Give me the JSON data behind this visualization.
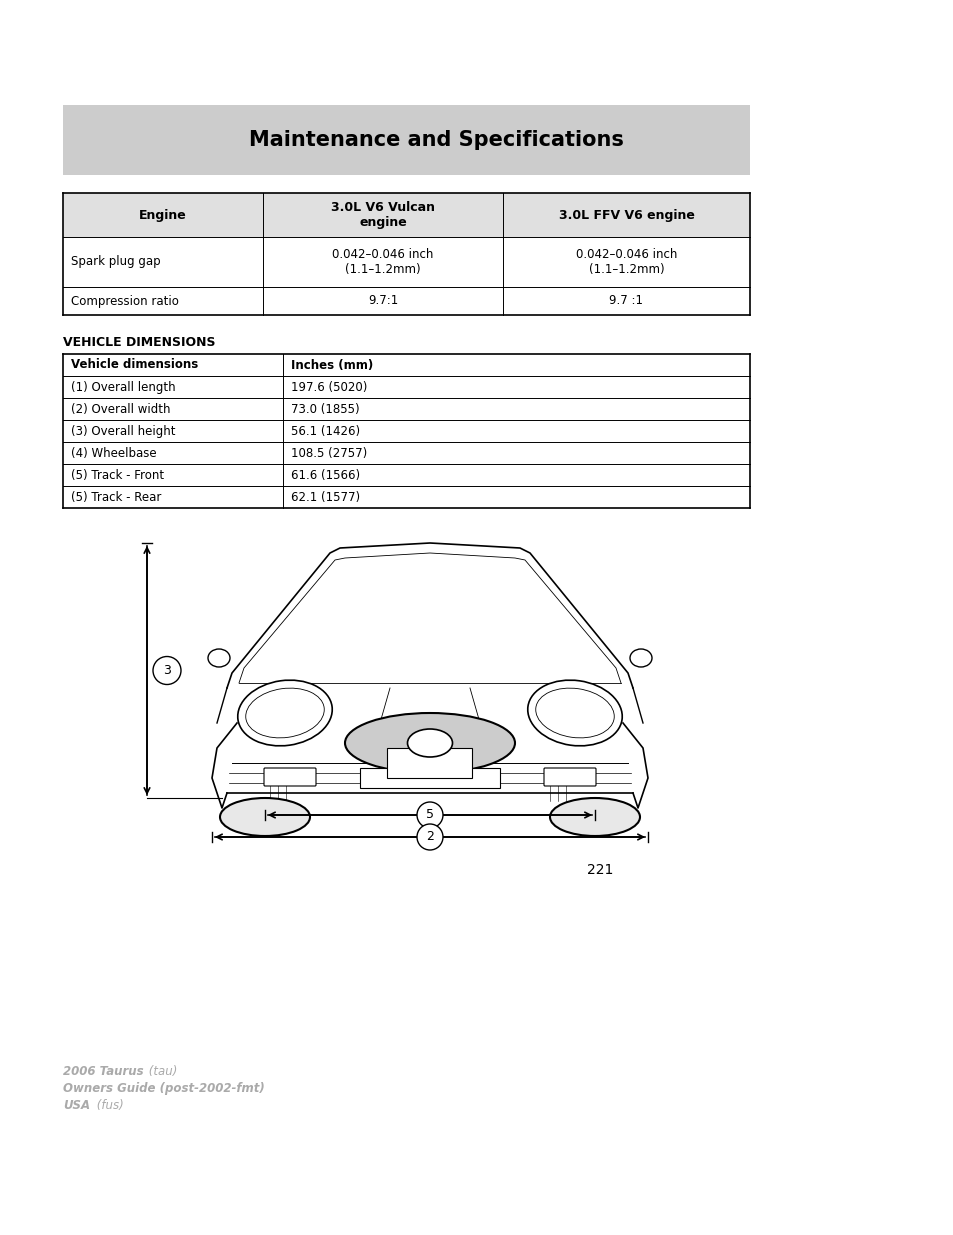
{
  "page_bg": "#ffffff",
  "header_bg": "#cccccc",
  "header_text": "Maintenance and Specifications",
  "header_text_color": "#000000",
  "table1_headers": [
    "Engine",
    "3.0L V6 Vulcan\nengine",
    "3.0L FFV V6 engine"
  ],
  "table1_rows": [
    [
      "Spark plug gap",
      "0.042–0.046 inch\n(1.1–1.2mm)",
      "0.042–0.046 inch\n(1.1–1.2mm)"
    ],
    [
      "Compression ratio",
      "9.7:1",
      "9.7 :1"
    ]
  ],
  "vehicle_dim_title": "VEHICLE DIMENSIONS",
  "table2_headers": [
    "Vehicle dimensions",
    "Inches (mm)"
  ],
  "table2_rows": [
    [
      "(1) Overall length",
      "197.6 (5020)"
    ],
    [
      "(2) Overall width",
      "73.0 (1855)"
    ],
    [
      "(3) Overall height",
      "56.1 (1426)"
    ],
    [
      "(4) Wheelbase",
      "108.5 (2757)"
    ],
    [
      "(5) Track - Front",
      "61.6 (1566)"
    ],
    [
      "(5) Track - Rear",
      "62.1 (1577)"
    ]
  ],
  "page_number": "221",
  "footer_line1_bold": "2006 Taurus",
  "footer_line1_normal": " (tau)",
  "footer_line2_bold": "Owners Guide (post-2002-fmt)",
  "footer_line3_bold": "USA",
  "footer_line3_normal": " (fus)",
  "footer_color": "#aaaaaa"
}
